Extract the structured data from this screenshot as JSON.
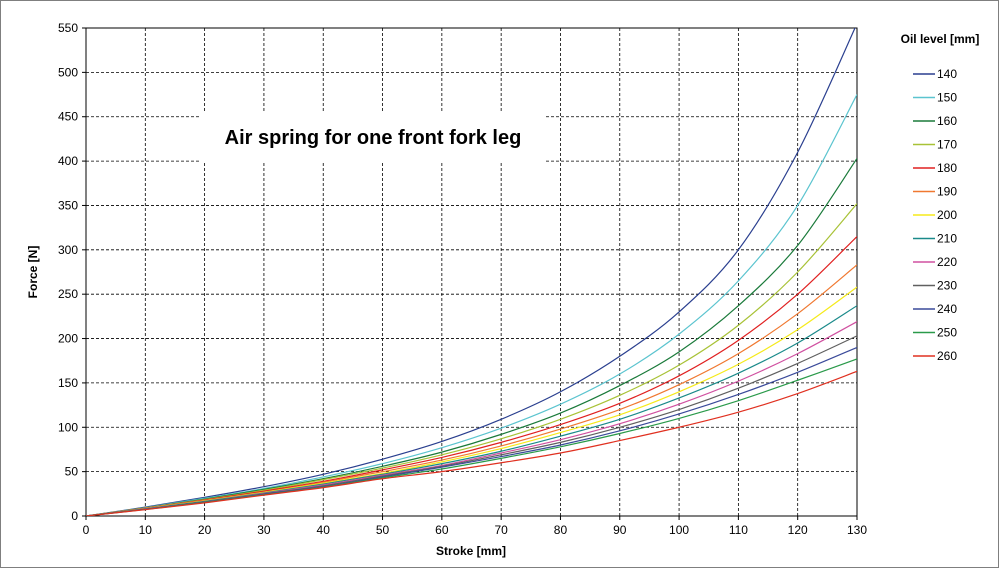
{
  "chart_data": {
    "type": "line",
    "title": "",
    "annotation": "Air spring for one front fork leg",
    "xlabel": "Stroke [mm]",
    "ylabel": "Force [N]",
    "xlim": [
      0,
      130
    ],
    "ylim": [
      0,
      550
    ],
    "xticks": [
      0,
      10,
      20,
      30,
      40,
      50,
      60,
      70,
      80,
      90,
      100,
      110,
      120,
      130
    ],
    "yticks": [
      0,
      50,
      100,
      150,
      200,
      250,
      300,
      350,
      400,
      450,
      500,
      550
    ],
    "grid": true,
    "legend_title": "Oil level [mm]",
    "legend_position": "right",
    "x": [
      0,
      10,
      20,
      30,
      40,
      50,
      60,
      70,
      80,
      90,
      100,
      110,
      120,
      130
    ],
    "series": [
      {
        "name": "140",
        "color": "#2a3f8f",
        "values": [
          0,
          10,
          21,
          33,
          47,
          64,
          84,
          109,
          140,
          180,
          230,
          300,
          410,
          555
        ]
      },
      {
        "name": "150",
        "color": "#5bc4cf",
        "values": [
          0,
          9.5,
          20,
          31,
          44,
          59,
          77,
          99,
          126,
          160,
          205,
          265,
          350,
          475
        ]
      },
      {
        "name": "160",
        "color": "#1a7a3a",
        "values": [
          0,
          9.2,
          19,
          30,
          42,
          56,
          72,
          92,
          116,
          147,
          185,
          237,
          305,
          403
        ]
      },
      {
        "name": "170",
        "color": "#a8c236",
        "values": [
          0,
          9,
          18.5,
          29,
          41,
          54,
          69,
          87,
          109,
          136,
          170,
          215,
          275,
          352
        ]
      },
      {
        "name": "180",
        "color": "#e02020",
        "values": [
          0,
          8.8,
          18,
          28,
          39,
          52,
          66,
          83,
          103,
          127,
          158,
          198,
          250,
          315
        ]
      },
      {
        "name": "190",
        "color": "#f07830",
        "values": [
          0,
          8.6,
          17.5,
          27,
          38,
          50,
          63,
          79,
          98,
          120,
          148,
          183,
          228,
          283
        ]
      },
      {
        "name": "200",
        "color": "#f5ea1a",
        "values": [
          0,
          8.4,
          17,
          26.5,
          37,
          48,
          61,
          76,
          94,
          114,
          140,
          171,
          210,
          258
        ]
      },
      {
        "name": "210",
        "color": "#1a8a8a",
        "values": [
          0,
          8.2,
          16.5,
          26,
          36,
          47,
          59,
          73,
          90,
          109,
          133,
          161,
          195,
          237
        ]
      },
      {
        "name": "220",
        "color": "#d050a0",
        "values": [
          0,
          8,
          16,
          25.5,
          35,
          46,
          57,
          71,
          86,
          104,
          126,
          152,
          183,
          219
        ]
      },
      {
        "name": "230",
        "color": "#606060",
        "values": [
          0,
          7.8,
          15.8,
          25,
          34,
          45,
          56,
          69,
          83,
          100,
          120,
          144,
          172,
          203
        ]
      },
      {
        "name": "240",
        "color": "#3a4a9a",
        "values": [
          0,
          7.6,
          15.5,
          24.5,
          33,
          44,
          55,
          67,
          80,
          96,
          115,
          137,
          162,
          190
        ]
      },
      {
        "name": "250",
        "color": "#2a9a4a",
        "values": [
          0,
          7.4,
          15.2,
          24,
          32.5,
          43,
          53,
          65,
          78,
          93,
          110,
          130,
          153,
          177
        ]
      },
      {
        "name": "260",
        "color": "#e03020",
        "values": [
          0,
          7.2,
          14.8,
          23.5,
          32,
          42,
          50,
          60,
          71,
          85,
          100,
          117,
          138,
          163
        ]
      }
    ]
  }
}
